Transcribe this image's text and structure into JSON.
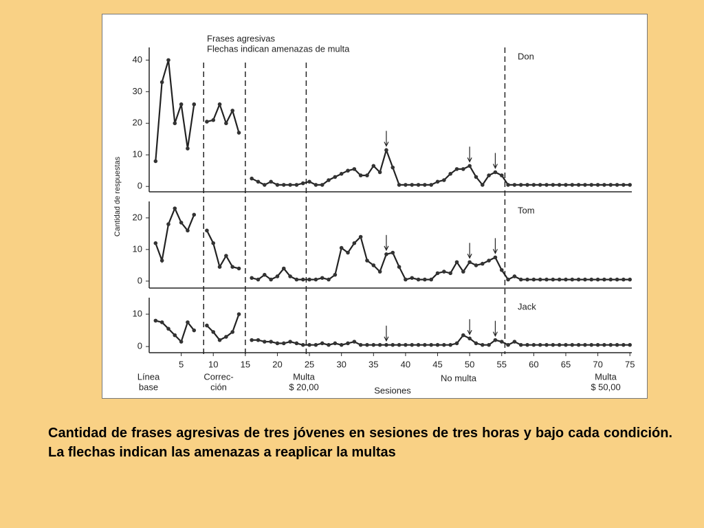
{
  "chart_data": {
    "type": "line",
    "title": "Frases agresivas",
    "subtitle": "Flechas indican amenazas de multa",
    "ylabel": "Cantidad de respuestas",
    "xlabel": "Sesiones",
    "x": [
      1,
      2,
      3,
      4,
      5,
      6,
      7,
      8,
      9,
      10,
      11,
      12,
      13,
      14,
      15,
      16,
      17,
      18,
      19,
      20,
      21,
      22,
      23,
      24,
      25,
      26,
      27,
      28,
      29,
      30,
      31,
      32,
      33,
      34,
      35,
      36,
      37,
      38,
      39,
      40,
      41,
      42,
      43,
      44,
      45,
      46,
      47,
      48,
      49,
      50,
      51,
      52,
      53,
      54,
      55,
      56,
      57,
      58,
      59,
      60,
      61,
      62,
      63,
      64,
      65,
      66,
      67,
      68,
      69,
      70,
      71,
      72,
      73,
      74,
      75
    ],
    "xlim": [
      0,
      75.3
    ],
    "xticks": [
      5,
      10,
      15,
      20,
      25,
      30,
      35,
      40,
      45,
      50,
      55,
      60,
      65,
      70,
      75
    ],
    "phase_boundaries": [
      8.5,
      15,
      24.5,
      55.5
    ],
    "phases": [
      {
        "label": [
          "Línea",
          "base"
        ]
      },
      {
        "label": [
          "Correc-",
          "ción"
        ]
      },
      {
        "label": [
          "Multa",
          "$ 20,00"
        ]
      },
      {
        "label": [
          "No multa"
        ]
      },
      {
        "label": [
          "Multa",
          "$ 50,00"
        ]
      }
    ],
    "panels": [
      {
        "name": "Don",
        "ylim": [
          -1.7,
          44
        ],
        "yticks": [
          0,
          10,
          20,
          30,
          40
        ],
        "arrows": [
          37,
          50,
          54
        ],
        "values": [
          8,
          33,
          40,
          20,
          26,
          12,
          26,
          null,
          20.5,
          21,
          26,
          20,
          24,
          17,
          null,
          2.5,
          1.5,
          0.5,
          1.5,
          0.5,
          0.5,
          0.5,
          0.5,
          1,
          1.5,
          0.5,
          0.5,
          2,
          3,
          4,
          5,
          5.5,
          3.5,
          3.5,
          6.5,
          4.5,
          11.5,
          6,
          0.5,
          0.5,
          0.5,
          0.5,
          0.5,
          0.5,
          1.5,
          2,
          4,
          5.5,
          5.5,
          6.5,
          3,
          0.5,
          3.5,
          4.5,
          3.5,
          0.5,
          0.5,
          0.5,
          0.5,
          0.5,
          0.5,
          0.5,
          0.5,
          0.5,
          0.5,
          0.5,
          0.5,
          0.5,
          0.5,
          0.5,
          0.5,
          0.5,
          0.5,
          0.5,
          0.5
        ]
      },
      {
        "name": "Tom",
        "ylim": [
          -2.2,
          25.2
        ],
        "yticks": [
          0,
          10,
          20
        ],
        "arrows": [
          37,
          50,
          54
        ],
        "values": [
          12,
          6.5,
          18,
          23,
          18.5,
          16,
          21,
          null,
          16,
          12,
          4.5,
          8,
          4.5,
          4,
          null,
          1,
          0.5,
          2,
          0.5,
          1.5,
          4,
          1.5,
          0.5,
          0.5,
          0.5,
          0.5,
          1,
          0.5,
          2,
          10.5,
          9,
          12,
          14,
          6.5,
          5,
          3,
          8.5,
          9,
          4.5,
          0.5,
          1,
          0.5,
          0.5,
          0.5,
          2.5,
          3,
          2.5,
          6,
          3,
          6,
          5,
          5.5,
          6.5,
          7.5,
          3.5,
          0.5,
          1.5,
          0.5,
          0.5,
          0.5,
          0.5,
          0.5,
          0.5,
          0.5,
          0.5,
          0.5,
          0.5,
          0.5,
          0.5,
          0.5,
          0.5,
          0.5,
          0.5,
          0.5,
          0.5
        ]
      },
      {
        "name": "Jack",
        "ylim": [
          -1.9,
          15.1
        ],
        "yticks": [
          0,
          10
        ],
        "arrows": [
          37,
          50,
          54
        ],
        "values": [
          8,
          7.5,
          5.5,
          3.5,
          1.5,
          7.5,
          5,
          null,
          6.5,
          4.5,
          2,
          3,
          4.5,
          10,
          null,
          2,
          2,
          1.5,
          1.5,
          1,
          1,
          1.5,
          1,
          0.5,
          0.5,
          0.5,
          1,
          0.5,
          1,
          0.5,
          1,
          1.5,
          0.5,
          0.5,
          0.5,
          0.5,
          0.5,
          0.5,
          0.5,
          0.5,
          0.5,
          0.5,
          0.5,
          0.5,
          0.5,
          0.5,
          0.5,
          1,
          3.5,
          2.5,
          1,
          0.5,
          0.5,
          2,
          1.5,
          0.5,
          1.5,
          0.5,
          0.5,
          0.5,
          0.5,
          0.5,
          0.5,
          0.5,
          0.5,
          0.5,
          0.5,
          0.5,
          0.5,
          0.5,
          0.5,
          0.5,
          0.5,
          0.5,
          0.5
        ]
      }
    ]
  },
  "slide": {
    "caption": "Cantidad de frases agresivas de tres jóvenes en sesiones de tres horas y bajo cada condición. La flechas indican las amenazas a reaplicar la multas"
  }
}
